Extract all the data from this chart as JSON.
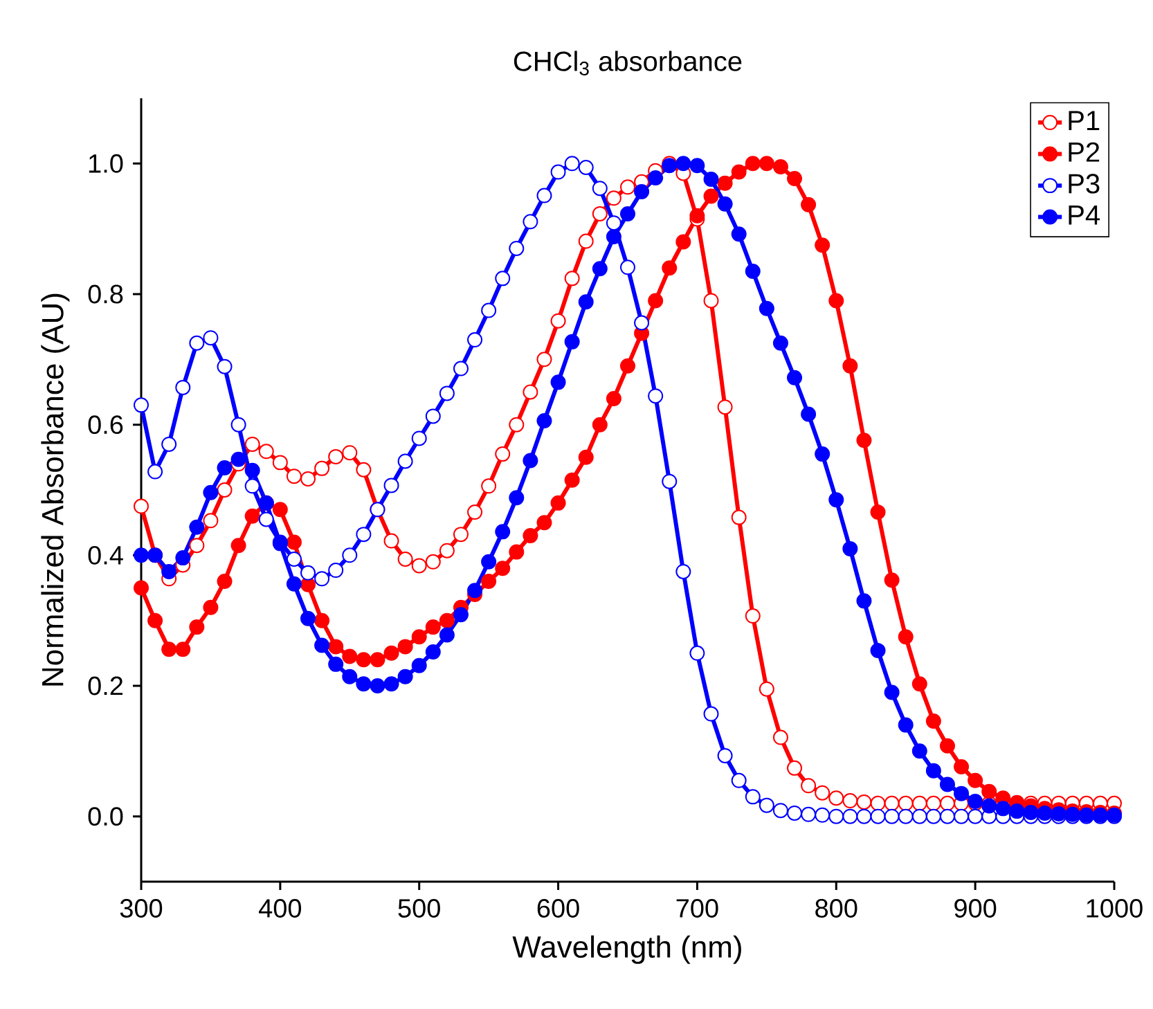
{
  "chart_data": {
    "type": "line",
    "title": "CHCl$_{3}$ absorbance",
    "xlabel": "Wavelength (nm)",
    "ylabel": "Normalized Absorbance (AU)",
    "x": [
      300,
      310,
      320,
      330,
      340,
      350,
      360,
      370,
      380,
      390,
      400,
      410,
      420,
      430,
      440,
      450,
      460,
      470,
      480,
      490,
      500,
      510,
      520,
      530,
      540,
      550,
      560,
      570,
      580,
      590,
      600,
      610,
      620,
      630,
      640,
      650,
      660,
      670,
      680,
      690,
      700,
      710,
      720,
      730,
      740,
      750,
      760,
      770,
      780,
      790,
      800,
      810,
      820,
      830,
      840,
      850,
      860,
      870,
      880,
      890,
      900,
      910,
      920,
      930,
      940,
      950,
      960,
      970,
      980,
      990,
      1000
    ],
    "series": [
      {
        "name": "P1",
        "color": "#ff0000",
        "values": [
          0.475,
          0.4,
          0.364,
          0.385,
          0.415,
          0.453,
          0.5,
          0.54,
          0.57,
          0.559,
          0.542,
          0.521,
          0.517,
          0.533,
          0.551,
          0.557,
          0.531,
          0.47,
          0.422,
          0.394,
          0.384,
          0.39,
          0.407,
          0.432,
          0.466,
          0.506,
          0.555,
          0.6,
          0.65,
          0.7,
          0.759,
          0.824,
          0.881,
          0.923,
          0.947,
          0.964,
          0.972,
          0.989,
          1.0,
          0.985,
          0.915,
          0.79,
          0.627,
          0.458,
          0.307,
          0.195,
          0.121,
          0.074,
          0.047,
          0.036,
          0.028,
          0.024,
          0.022,
          0.02,
          0.02,
          0.02,
          0.02,
          0.02,
          0.02,
          0.02,
          0.02,
          0.02,
          0.02,
          0.02,
          0.02,
          0.02,
          0.02,
          0.02,
          0.02,
          0.02,
          0.02
        ]
      },
      {
        "name": "P2",
        "color": "#ff0000",
        "values": [
          0.35,
          0.3,
          0.256,
          0.256,
          0.29,
          0.32,
          0.36,
          0.415,
          0.46,
          0.48,
          0.47,
          0.42,
          0.355,
          0.3,
          0.26,
          0.245,
          0.24,
          0.24,
          0.25,
          0.26,
          0.275,
          0.29,
          0.3,
          0.32,
          0.34,
          0.36,
          0.38,
          0.405,
          0.43,
          0.45,
          0.48,
          0.515,
          0.55,
          0.6,
          0.64,
          0.69,
          0.74,
          0.79,
          0.84,
          0.88,
          0.92,
          0.95,
          0.97,
          0.987,
          1.0,
          1.0,
          0.995,
          0.977,
          0.937,
          0.875,
          0.79,
          0.69,
          0.576,
          0.466,
          0.362,
          0.275,
          0.203,
          0.146,
          0.108,
          0.076,
          0.055,
          0.038,
          0.028,
          0.021,
          0.016,
          0.012,
          0.01,
          0.008,
          0.007,
          0.006,
          0.005
        ]
      },
      {
        "name": "P3",
        "color": "#0000ff",
        "values": [
          0.63,
          0.528,
          0.57,
          0.657,
          0.725,
          0.733,
          0.689,
          0.6,
          0.506,
          0.455,
          0.42,
          0.394,
          0.373,
          0.364,
          0.377,
          0.4,
          0.432,
          0.47,
          0.507,
          0.544,
          0.579,
          0.613,
          0.648,
          0.686,
          0.73,
          0.775,
          0.824,
          0.87,
          0.911,
          0.951,
          0.987,
          1.0,
          0.994,
          0.962,
          0.909,
          0.841,
          0.756,
          0.644,
          0.513,
          0.375,
          0.25,
          0.157,
          0.093,
          0.055,
          0.03,
          0.017,
          0.009,
          0.005,
          0.003,
          0.002,
          0.0,
          0.0,
          0.0,
          0.0,
          0.0,
          0.0,
          0.0,
          0.0,
          0.0,
          0.0,
          0.0,
          0.0,
          0.0,
          0.0,
          0.0,
          0.0,
          0.0,
          0.0,
          0.0,
          0.0,
          0.0
        ]
      },
      {
        "name": "P4",
        "color": "#0000ff",
        "values": [
          0.4,
          0.4,
          0.375,
          0.396,
          0.443,
          0.496,
          0.534,
          0.547,
          0.53,
          0.48,
          0.418,
          0.356,
          0.303,
          0.262,
          0.233,
          0.214,
          0.203,
          0.2,
          0.203,
          0.214,
          0.231,
          0.252,
          0.278,
          0.309,
          0.346,
          0.39,
          0.436,
          0.488,
          0.545,
          0.606,
          0.665,
          0.727,
          0.788,
          0.839,
          0.888,
          0.923,
          0.957,
          0.978,
          0.997,
          1.0,
          0.997,
          0.976,
          0.938,
          0.892,
          0.835,
          0.778,
          0.725,
          0.672,
          0.616,
          0.555,
          0.485,
          0.41,
          0.33,
          0.254,
          0.19,
          0.14,
          0.1,
          0.07,
          0.049,
          0.035,
          0.023,
          0.016,
          0.012,
          0.008,
          0.006,
          0.005,
          0.004,
          0.003,
          0.002,
          0.002,
          0.002
        ]
      }
    ],
    "xlim": [
      300,
      1000
    ],
    "ylim": [
      -0.1,
      1.1
    ],
    "xticks": [
      300,
      400,
      500,
      600,
      700,
      800,
      900,
      1000
    ],
    "yticks": [
      {
        "value": 0.0,
        "label": "0.0"
      },
      {
        "value": 0.2,
        "label": "0.2"
      },
      {
        "value": 0.4,
        "label": "0.4"
      },
      {
        "value": 0.6,
        "label": "0.6"
      },
      {
        "value": 0.8,
        "label": "0.8"
      },
      {
        "value": 1.0,
        "label": "1.0"
      }
    ],
    "marker": "circle",
    "line_style": "solid",
    "grid": false,
    "legend": "top right"
  }
}
